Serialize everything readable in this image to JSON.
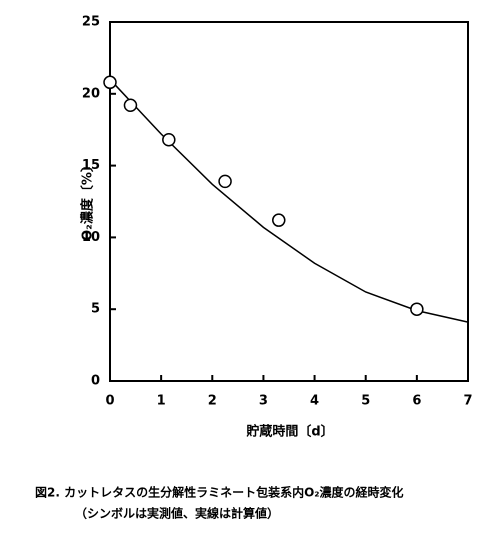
{
  "chart_data": {
    "type": "scatter",
    "xlabel": "貯蔵時間〔d〕",
    "ylabel": "O₂濃度〔%〕",
    "caption": [
      "図2.  カットレタスの生分解性ラミネート包装系内O₂濃度の経時変化",
      "（シンボルは実測値、実線は計算値）"
    ],
    "points": {
      "x": [
        0,
        0.4,
        1.15,
        2.25,
        3.3,
        6.0
      ],
      "y": [
        20.8,
        19.2,
        16.8,
        13.9,
        11.2,
        5.0
      ]
    },
    "curve": {
      "x": [
        0,
        1,
        2,
        3,
        4,
        5,
        6,
        7
      ],
      "y": [
        21.0,
        17.2,
        13.7,
        10.7,
        8.2,
        6.2,
        4.9,
        4.1
      ]
    },
    "xlim": [
      0,
      7
    ],
    "ylim": [
      0,
      25
    ],
    "xticks": [
      0,
      1,
      2,
      3,
      4,
      5,
      6,
      7
    ],
    "yticks": [
      0,
      5,
      10,
      15,
      20,
      25
    ],
    "color": "#000000"
  }
}
